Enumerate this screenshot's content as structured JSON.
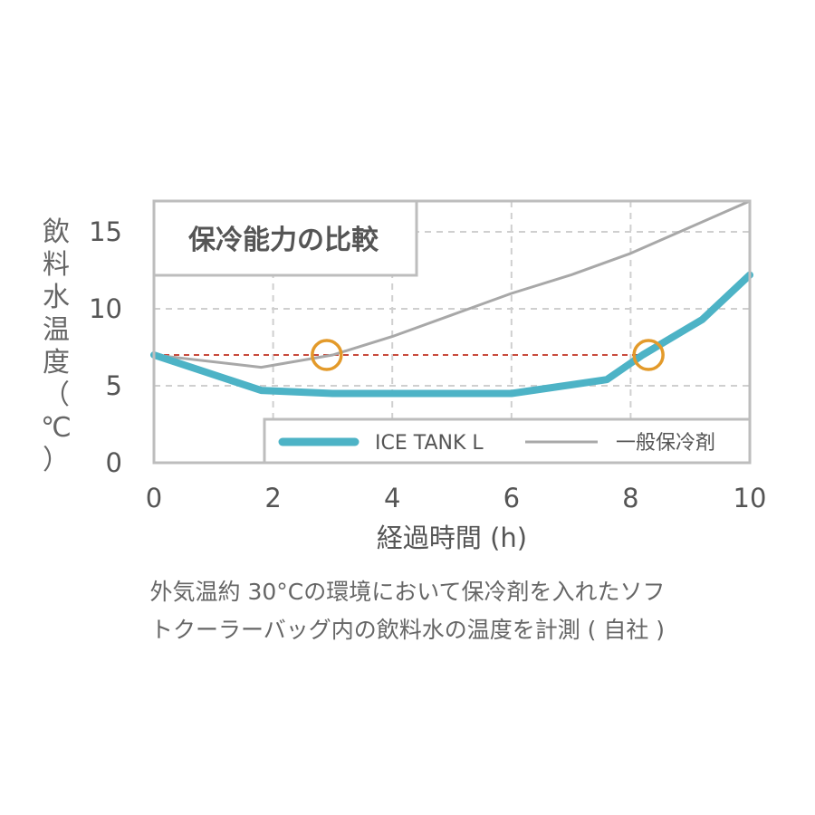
{
  "chart_data": {
    "type": "line",
    "title": "保冷能力の比較",
    "xlabel": "経過時間 (h)",
    "ylabel": "飲料水温度（℃）",
    "xlim": [
      0,
      10
    ],
    "ylim": [
      0,
      17
    ],
    "x_ticks": [
      "0",
      "2",
      "4",
      "6",
      "8",
      "10"
    ],
    "y_ticks": [
      "0",
      "5",
      "10",
      "15"
    ],
    "grid": true,
    "legend_position": "bottom-right",
    "series": [
      {
        "name": "ICE TANK L",
        "color": "#4db3c6",
        "points": [
          [
            0,
            7.0
          ],
          [
            1.8,
            4.7
          ],
          [
            3,
            4.5
          ],
          [
            4,
            4.5
          ],
          [
            5,
            4.5
          ],
          [
            6,
            4.5
          ],
          [
            7.6,
            5.4
          ],
          [
            8.2,
            7.0
          ],
          [
            9.2,
            9.3
          ],
          [
            10,
            12.2
          ]
        ]
      },
      {
        "name": "一般保冷剤",
        "color": "#a8a8a8",
        "points": [
          [
            0,
            7.0
          ],
          [
            1.8,
            6.2
          ],
          [
            3,
            7.0
          ],
          [
            4,
            8.2
          ],
          [
            5,
            9.6
          ],
          [
            6,
            11.0
          ],
          [
            7,
            12.2
          ],
          [
            8,
            13.6
          ],
          [
            9,
            15.3
          ],
          [
            10,
            17.0
          ]
        ]
      }
    ],
    "reference_line": {
      "y": 7.0,
      "color": "#c84a3c",
      "style": "dashed"
    },
    "markers": [
      {
        "x": 2.9,
        "y": 7.0,
        "color": "#e39a2a",
        "shape": "circle"
      },
      {
        "x": 8.3,
        "y": 7.0,
        "color": "#e39a2a",
        "shape": "circle"
      }
    ]
  },
  "ylabel_chars": [
    "飲",
    "料",
    "水",
    "温",
    "度",
    "（",
    "℃",
    "）"
  ],
  "caption": {
    "line1": "外気温約 30°Cの環境において保冷剤を入れたソフ",
    "line2": "トクーラーバッグ内の飲料水の温度を計測 ( 自社 )"
  }
}
